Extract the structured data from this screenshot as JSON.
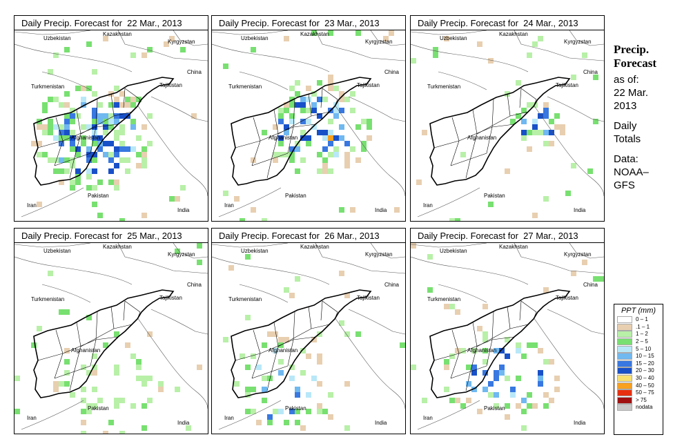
{
  "panels": [
    {
      "title": "Daily Precip. Forecast for  22 Mar., 2013",
      "date": "22 Mar"
    },
    {
      "title": "Daily Precip. Forecast for  23 Mar., 2013",
      "date": "23 Mar"
    },
    {
      "title": "Daily Precip. Forecast for  24 Mar., 2013",
      "date": "24 Mar"
    },
    {
      "title": "Daily Precip. Forecast for  25 Mar., 2013",
      "date": "25 Mar"
    },
    {
      "title": "Daily Precip. Forecast for  26 Mar., 2013",
      "date": "26 Mar"
    },
    {
      "title": "Daily Precip. Forecast for  27 Mar., 2013",
      "date": "27 Mar"
    }
  ],
  "map_labels": {
    "kazakhstan": "Kazakhstan",
    "uzbekistan": "Uzbekistan",
    "kyrgyzstan": "Kyrgyzstan",
    "china": "China",
    "turkmenistan": "Turkmenistan",
    "tajikistan": "Tajikistan",
    "afghanistan": "Afghanistan",
    "pakistan": "Pakistan",
    "iran": "Iran",
    "india": "India"
  },
  "sidebar": {
    "title_line1": "Precip.",
    "title_line2": "Forecast",
    "asof_line1": "as of:",
    "asof_line2": "22 Mar.",
    "asof_line3": "2013",
    "daily_line1": "Daily",
    "daily_line2": "Totals",
    "data_line1": "Data:",
    "data_line2": "NOAA–",
    "data_line3": "GFS"
  },
  "legend": {
    "title": "PPT (mm)",
    "items": [
      {
        "label": "0 – 1",
        "color": "#ffffff"
      },
      {
        "label": ".1 – 1",
        "color": "#e8cfb0"
      },
      {
        "label": "1 – 2",
        "color": "#b8f0a8"
      },
      {
        "label": "2 – 5",
        "color": "#78e070"
      },
      {
        "label": "5 – 10",
        "color": "#b8e8f8"
      },
      {
        "label": "10 – 15",
        "color": "#70b8f0"
      },
      {
        "label": "15 – 20",
        "color": "#3878e0"
      },
      {
        "label": "20 – 30",
        "color": "#1850c8"
      },
      {
        "label": "30 – 40",
        "color": "#f8e070"
      },
      {
        "label": "40 – 50",
        "color": "#f8a020"
      },
      {
        "label": "50 – 75",
        "color": "#e83010"
      },
      {
        "label": "> 75",
        "color": "#a01010"
      },
      {
        "label": "nodata",
        "color": "#c8c8c8"
      }
    ]
  }
}
